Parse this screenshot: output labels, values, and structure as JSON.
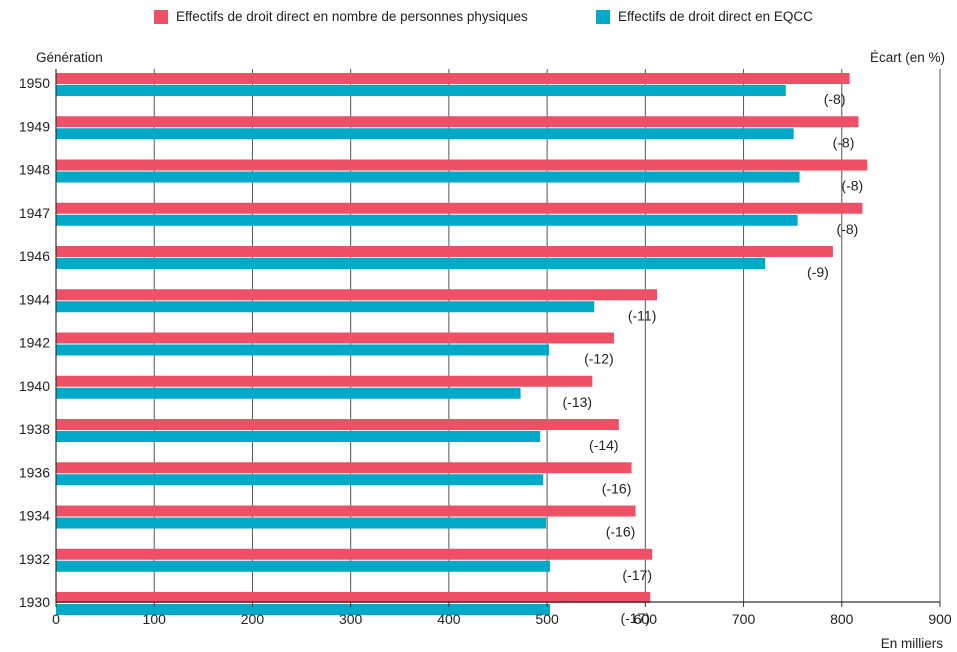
{
  "chart_data": {
    "type": "bar",
    "orientation": "horizontal",
    "categories": [
      "1950",
      "1949",
      "1948",
      "1947",
      "1946",
      "1944",
      "1942",
      "1940",
      "1938",
      "1936",
      "1934",
      "1932",
      "1930"
    ],
    "series": [
      {
        "name": "Effectifs de droit direct en nombre de personnes physiques",
        "color": "#ef5066",
        "values": [
          808,
          817,
          826,
          821,
          791,
          612,
          568,
          546,
          573,
          586,
          590,
          607,
          605
        ]
      },
      {
        "name": "Effectifs de droit direct en EQCC",
        "color": "#00a9c8",
        "values": [
          743,
          751,
          757,
          755,
          722,
          548,
          502,
          473,
          493,
          496,
          499,
          503,
          503
        ]
      }
    ],
    "gap_labels": [
      "(-8)",
      "(-8)",
      "(-8)",
      "(-8)",
      "(-9)",
      "(-11)",
      "(-12)",
      "(-13)",
      "(-14)",
      "(-16)",
      "(-16)",
      "(-17)",
      "(-17)"
    ],
    "xlim": [
      0,
      900
    ],
    "xticks": [
      0,
      100,
      200,
      300,
      400,
      500,
      600,
      700,
      800,
      900
    ],
    "ylabel": "Génération",
    "right_label": "Écart (en %)",
    "xlabel": "En milliers",
    "grid": "vertical",
    "legend_position": "top"
  }
}
